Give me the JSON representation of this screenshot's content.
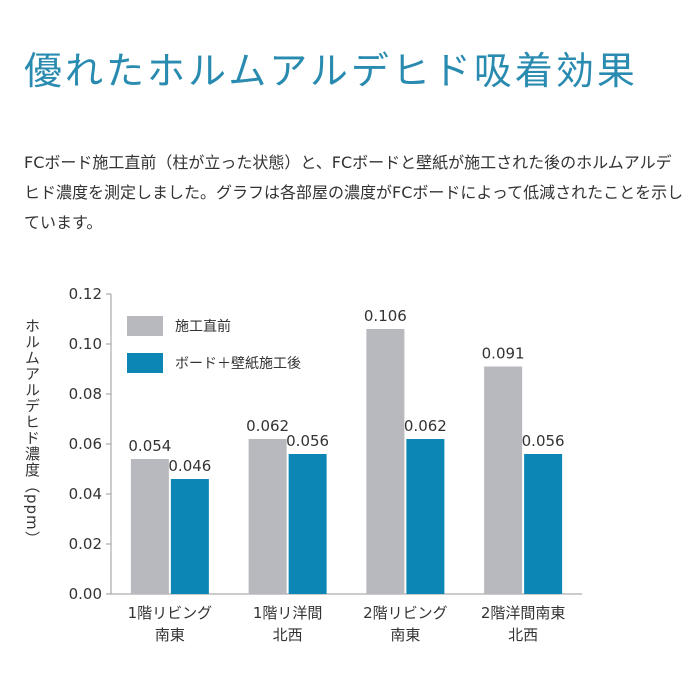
{
  "page": {
    "title": "優れたホルムアルデヒド吸着効果",
    "description": "FCボード施工直前（柱が立った状態）と、FCボードと壁紙が施工された後のホルムアルデヒド濃度を測定しました。グラフは各部屋の濃度がFCボードによって低減されたことを示しています。"
  },
  "colors": {
    "before": "#b7b9bf",
    "after": "#0b86b5",
    "axis": "#9a9a9a",
    "title": "#2a8bb0"
  },
  "chart_data": {
    "type": "bar",
    "title": "",
    "xlabel": "",
    "ylabel": "ホルムアルデヒド濃度（ppm）",
    "ylim": [
      0,
      0.12
    ],
    "yticks": [
      "0.00",
      "0.02",
      "0.04",
      "0.06",
      "0.08",
      "0.10",
      "0.12"
    ],
    "categories": [
      [
        "1階リビング",
        "南東"
      ],
      [
        "1階リ洋間",
        "北西"
      ],
      [
        "2階リビング",
        "南東"
      ],
      [
        "2階洋間南東",
        "北西"
      ]
    ],
    "series": [
      {
        "name": "施工直前",
        "values": [
          0.054,
          0.062,
          0.106,
          0.091
        ],
        "labels": [
          "0.054",
          "0.062",
          "0.106",
          "0.091"
        ]
      },
      {
        "name": "ボード＋壁紙施工後",
        "values": [
          0.046,
          0.056,
          0.062,
          0.056
        ],
        "labels": [
          "0.046",
          "0.056",
          "0.062",
          "0.056"
        ]
      }
    ],
    "legend_position": "top-left"
  }
}
